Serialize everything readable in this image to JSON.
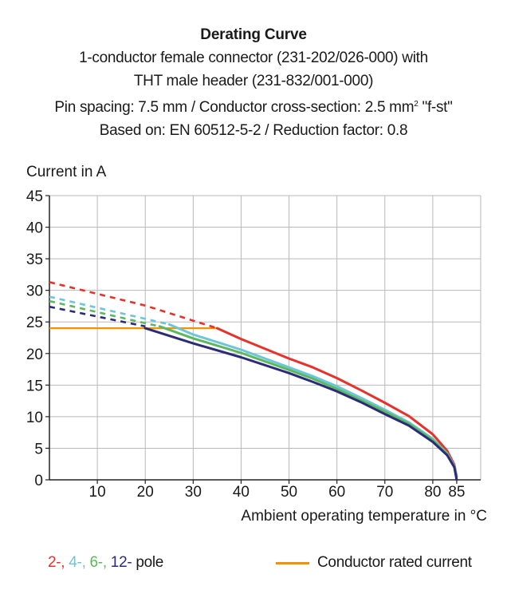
{
  "chart_data": {
    "type": "line",
    "title": "Derating Curve",
    "subtitle_lines": [
      "1-conductor female connector (231-202/026-000) with",
      "THT male header (231-832/001-000)",
      "Pin spacing: 7.5 mm / Conductor cross-section: 2.5 mm",
      "Based on: EN 60512-5-2 / Reduction factor: 0.8"
    ],
    "subtitle_superscript": "2",
    "subtitle_suffix": " \"f-st\"",
    "ylabel": "Current in A",
    "xlabel": "Ambient operating temperature in °C",
    "xlim": [
      0,
      90
    ],
    "ylim": [
      0,
      45
    ],
    "x_ticks": [
      10,
      20,
      30,
      40,
      50,
      60,
      70,
      80,
      85
    ],
    "y_ticks": [
      0,
      5,
      10,
      15,
      20,
      25,
      30,
      35,
      40,
      45
    ],
    "grid": true,
    "series": [
      {
        "pole": "2-",
        "color": "#e8312a",
        "dashed": [
          [
            0,
            31.3
          ],
          [
            20,
            27.6
          ],
          [
            35,
            24
          ]
        ],
        "solid": [
          [
            35,
            24
          ],
          [
            40,
            22.3
          ],
          [
            50,
            19.2
          ],
          [
            55,
            17.8
          ],
          [
            60,
            16.1
          ],
          [
            65,
            14.2
          ],
          [
            70,
            12.2
          ],
          [
            75,
            10.1
          ],
          [
            80,
            7.2
          ],
          [
            83,
            4.6
          ],
          [
            84.5,
            2.4
          ],
          [
            85,
            0.5
          ]
        ]
      },
      {
        "pole": "4-",
        "color": "#6cc5d8",
        "dashed": [
          [
            0,
            29
          ],
          [
            20,
            25.5
          ],
          [
            25,
            24.6
          ]
        ],
        "solid": [
          [
            25,
            24.6
          ],
          [
            30,
            23
          ],
          [
            40,
            20.6
          ],
          [
            50,
            17.8
          ],
          [
            55,
            16.4
          ],
          [
            60,
            14.8
          ],
          [
            65,
            13
          ],
          [
            70,
            11.1
          ],
          [
            75,
            9.1
          ],
          [
            80,
            6.5
          ],
          [
            83,
            4.2
          ],
          [
            84.5,
            2.2
          ],
          [
            85,
            0.5
          ]
        ]
      },
      {
        "pole": "6-",
        "color": "#5cb85c",
        "dashed": [
          [
            0,
            28.3
          ],
          [
            20,
            24.8
          ],
          [
            23,
            24.3
          ]
        ],
        "solid": [
          [
            23,
            24.3
          ],
          [
            30,
            22.4
          ],
          [
            40,
            20.1
          ],
          [
            50,
            17.4
          ],
          [
            55,
            16
          ],
          [
            60,
            14.4
          ],
          [
            65,
            12.6
          ],
          [
            70,
            10.8
          ],
          [
            75,
            8.9
          ],
          [
            80,
            6.3
          ],
          [
            83,
            4.1
          ],
          [
            84.5,
            2.1
          ],
          [
            85,
            0.5
          ]
        ]
      },
      {
        "pole": "12-",
        "color": "#2b2b7a",
        "dashed": [
          [
            0,
            27.4
          ],
          [
            20,
            24.3
          ]
        ],
        "solid": [
          [
            20,
            24
          ],
          [
            30,
            21.6
          ],
          [
            40,
            19.4
          ],
          [
            50,
            16.9
          ],
          [
            55,
            15.5
          ],
          [
            60,
            14
          ],
          [
            65,
            12.3
          ],
          [
            70,
            10.4
          ],
          [
            75,
            8.6
          ],
          [
            80,
            6
          ],
          [
            83,
            3.9
          ],
          [
            84.5,
            2
          ],
          [
            85,
            0
          ]
        ]
      }
    ],
    "rated_current": {
      "name": "Conductor rated current",
      "color": "#f39200",
      "points": [
        [
          0,
          24
        ],
        [
          35,
          24
        ]
      ]
    },
    "legend": {
      "poles": [
        {
          "text": "2-",
          "color": "#e8312a"
        },
        {
          "text": "4-",
          "color": "#6cc5d8"
        },
        {
          "text": "6-",
          "color": "#5cb85c"
        },
        {
          "text": "12-",
          "color": "#2b2b7a"
        }
      ],
      "separator": ", ",
      "pole_word": " pole",
      "rated_label": "Conductor rated current"
    }
  }
}
